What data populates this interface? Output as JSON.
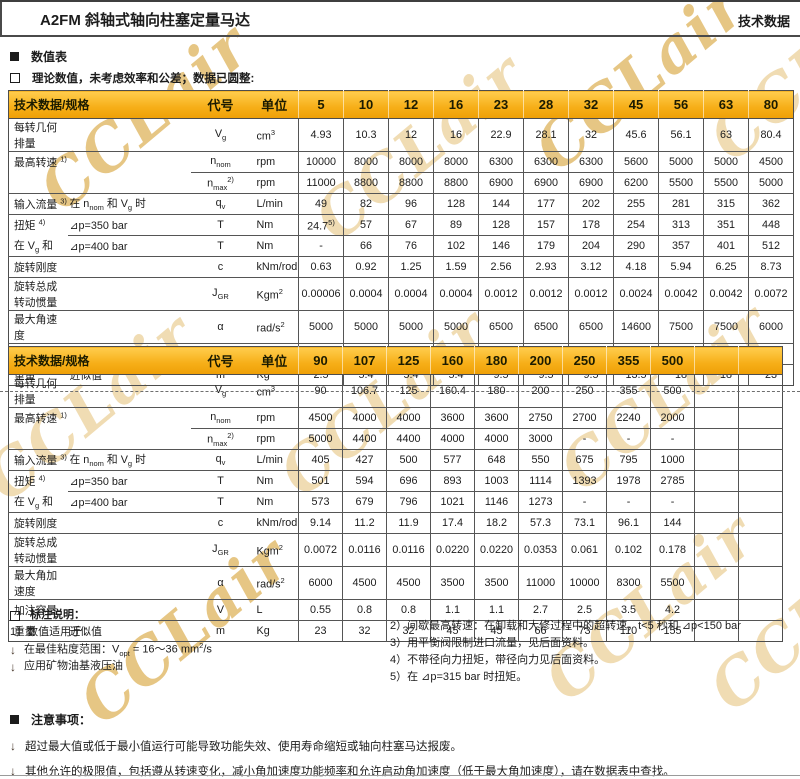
{
  "watermark": "CCLair",
  "header": {
    "left": "A2FM 斜轴式轴向柱塞定量马达",
    "right": "技术数据"
  },
  "sections": {
    "num_table": "数值表",
    "theory": "理论数值，未考虑效率和公差；数据已圆整:"
  },
  "icons": {
    "bullet_arrow": "↓",
    "filled_square": "filled-square",
    "open_square": "open-square"
  },
  "colors": {
    "band_top": "#FFCD4E",
    "band_bottom": "#EE9F06",
    "watermark": "#E2BA68",
    "grid": "#555555"
  },
  "tables": [
    {
      "header": {
        "spec": "技术数据/规格",
        "code": "代号",
        "unit": "单位",
        "sizes": [
          "5",
          "10",
          "12",
          "16",
          "23",
          "28",
          "32",
          "45",
          "56",
          "63",
          "80"
        ]
      },
      "rows": [
        {
          "label": [
            [
              "t",
              "每转几何排量"
            ]
          ],
          "sublabel": [],
          "code": [
            [
              "t",
              "V"
            ],
            [
              "sub",
              "g"
            ]
          ],
          "unit": [
            [
              "t",
              "cm"
            ],
            [
              "sup",
              "3"
            ]
          ],
          "divider": "full",
          "values": [
            "4.93",
            "10.3",
            "12",
            "16",
            "22.9",
            "28.1",
            "32",
            "45.6",
            "56.1",
            "63",
            "80.4"
          ]
        },
        {
          "label": [
            [
              "t",
              "最高转速 "
            ],
            [
              "sup",
              "1)"
            ]
          ],
          "sublabel": [],
          "code": [
            [
              "t",
              "n"
            ],
            [
              "sub",
              "nom"
            ]
          ],
          "unit": [
            [
              "t",
              "rpm"
            ]
          ],
          "divider": "full",
          "values": [
            "10000",
            "8000",
            "8000",
            "8000",
            "6300",
            "6300",
            "6300",
            "5600",
            "5000",
            "5000",
            "4500"
          ]
        },
        {
          "label": [],
          "sublabel": [],
          "code": [
            [
              "t",
              "n"
            ],
            [
              "sub",
              "max"
            ],
            [
              "sup",
              "2)"
            ]
          ],
          "unit": [
            [
              "t",
              "rpm"
            ]
          ],
          "divider": "code",
          "values": [
            "11000",
            "8800",
            "8800",
            "8800",
            "6900",
            "6900",
            "6900",
            "6200",
            "5500",
            "5500",
            "5000"
          ]
        },
        {
          "label": [
            [
              "t",
              "输入流量 "
            ],
            [
              "sup",
              "3)"
            ]
          ],
          "sublabel": [
            [
              "t",
              "在 n"
            ],
            [
              "sub",
              "nom"
            ],
            [
              "t",
              " 和 V"
            ],
            [
              "sub",
              "g"
            ],
            [
              "t",
              " 时"
            ]
          ],
          "code": [
            [
              "t",
              "q"
            ],
            [
              "sub",
              "v"
            ]
          ],
          "unit": [
            [
              "t",
              "L/min"
            ]
          ],
          "divider": "full",
          "values": [
            "49",
            "82",
            "96",
            "128",
            "144",
            "177",
            "202",
            "255",
            "281",
            "315",
            "362"
          ]
        },
        {
          "label": [
            [
              "t",
              "扭矩 "
            ],
            [
              "sup",
              "4)"
            ]
          ],
          "sublabel": [
            [
              "t",
              "⊿p=350 bar"
            ]
          ],
          "code": [
            [
              "t",
              "T"
            ]
          ],
          "unit": [
            [
              "t",
              "Nm"
            ]
          ],
          "divider": "full",
          "values": [
            [
              [
                "t",
                "24.7"
              ],
              [
                "sup",
                "5)"
              ]
            ],
            "57",
            "67",
            "89",
            "128",
            "157",
            "178",
            "254",
            "313",
            "351",
            "448"
          ]
        },
        {
          "label": [
            [
              "t",
              "在 V"
            ],
            [
              "sub",
              "g"
            ],
            [
              "t",
              " 和"
            ]
          ],
          "sublabel": [
            [
              "t",
              "⊿p=400 bar"
            ]
          ],
          "code": [
            [
              "t",
              "T"
            ]
          ],
          "unit": [
            [
              "t",
              "Nm"
            ]
          ],
          "divider": "sub",
          "values": [
            "-",
            "66",
            "76",
            "102",
            "146",
            "179",
            "204",
            "290",
            "357",
            "401",
            "512"
          ]
        },
        {
          "label": [
            [
              "t",
              "旋转刚度"
            ]
          ],
          "sublabel": [],
          "code": [
            [
              "t",
              "c"
            ]
          ],
          "unit": [
            [
              "t",
              "kNm/rod"
            ]
          ],
          "divider": "full",
          "values": [
            "0.63",
            "0.92",
            "1.25",
            "1.59",
            "2.56",
            "2.93",
            "3.12",
            "4.18",
            "5.94",
            "6.25",
            "8.73"
          ]
        },
        {
          "label": [
            [
              "t",
              "旋转总成转动惯量"
            ]
          ],
          "sublabel": [],
          "code": [
            [
              "t",
              "J"
            ],
            [
              "sub",
              "GR"
            ]
          ],
          "unit": [
            [
              "t",
              "Kgm"
            ],
            [
              "sup",
              "2"
            ]
          ],
          "divider": "full",
          "values": [
            "0.00006",
            "0.0004",
            "0.0004",
            "0.0004",
            "0.0012",
            "0.0012",
            "0.0012",
            "0.0024",
            "0.0042",
            "0.0042",
            "0.0072"
          ]
        },
        {
          "label": [
            [
              "t",
              "最大角速度"
            ]
          ],
          "sublabel": [],
          "code": [
            [
              "t",
              "α"
            ]
          ],
          "unit": [
            [
              "t",
              "rad/s"
            ],
            [
              "sup",
              "2"
            ]
          ],
          "divider": "full",
          "values": [
            "5000",
            "5000",
            "5000",
            "5000",
            "6500",
            "6500",
            "6500",
            "14600",
            "7500",
            "7500",
            "6000"
          ]
        },
        {
          "label": [
            [
              "t",
              "加注容量"
            ]
          ],
          "sublabel": [],
          "code": [
            [
              "t",
              "V"
            ]
          ],
          "unit": [
            [
              "t",
              "L"
            ]
          ],
          "divider": "full",
          "values": [
            "0.12",
            "0.17",
            "0.17",
            "0.17",
            "0.20",
            "0.20",
            "0.20",
            "0.33",
            "0.45",
            "0.45",
            "0.55"
          ]
        },
        {
          "label": [
            [
              "t",
              "重量"
            ]
          ],
          "sublabel": [
            [
              "t",
              "近似值"
            ]
          ],
          "code": [
            [
              "t",
              "m"
            ]
          ],
          "unit": [
            [
              "t",
              "Kg"
            ]
          ],
          "divider": "full",
          "values": [
            "2.5",
            "5.4",
            "5.4",
            "5.4",
            "9.5",
            "9.5",
            "9.5",
            "13.5",
            "18",
            "18",
            "23"
          ]
        }
      ]
    },
    {
      "header": {
        "spec": "技术数据/规格",
        "code": "代号",
        "unit": "单位",
        "sizes": [
          "90",
          "107",
          "125",
          "160",
          "180",
          "200",
          "250",
          "355",
          "500",
          "",
          ""
        ]
      },
      "rows": [
        {
          "label": [
            [
              "t",
              "每转几何排量"
            ]
          ],
          "sublabel": [],
          "code": [
            [
              "t",
              "V"
            ],
            [
              "sub",
              "g"
            ]
          ],
          "unit": [
            [
              "t",
              "cm"
            ],
            [
              "sup",
              "3"
            ]
          ],
          "divider": "full",
          "values": [
            "90",
            "106.7",
            "125",
            "160.4",
            "180",
            "200",
            "250",
            "355",
            "500",
            "",
            ""
          ]
        },
        {
          "label": [
            [
              "t",
              "最高转速 "
            ],
            [
              "sup",
              "1)"
            ]
          ],
          "sublabel": [],
          "code": [
            [
              "t",
              "n"
            ],
            [
              "sub",
              "nom"
            ]
          ],
          "unit": [
            [
              "t",
              "rpm"
            ]
          ],
          "divider": "full",
          "values": [
            "4500",
            "4000",
            "4000",
            "3600",
            "3600",
            "2750",
            "2700",
            "2240",
            "2000",
            "",
            ""
          ]
        },
        {
          "label": [],
          "sublabel": [],
          "code": [
            [
              "t",
              "n"
            ],
            [
              "sub",
              "max"
            ],
            [
              "sup",
              "2)"
            ]
          ],
          "unit": [
            [
              "t",
              "rpm"
            ]
          ],
          "divider": "code",
          "values": [
            "5000",
            "4400",
            "4400",
            "4000",
            "4000",
            "3000",
            "-",
            "-",
            "-",
            "",
            ""
          ]
        },
        {
          "label": [
            [
              "t",
              "输入流量 "
            ],
            [
              "sup",
              "3)"
            ]
          ],
          "sublabel": [
            [
              "t",
              "在 n"
            ],
            [
              "sub",
              "nom"
            ],
            [
              "t",
              " 和 V"
            ],
            [
              "sub",
              "g"
            ],
            [
              "t",
              " 时"
            ]
          ],
          "code": [
            [
              "t",
              "q"
            ],
            [
              "sub",
              "v"
            ]
          ],
          "unit": [
            [
              "t",
              "L/min"
            ]
          ],
          "divider": "full",
          "values": [
            "405",
            "427",
            "500",
            "577",
            "648",
            "550",
            "675",
            "795",
            "1000",
            "",
            ""
          ]
        },
        {
          "label": [
            [
              "t",
              "扭矩 "
            ],
            [
              "sup",
              "4)"
            ]
          ],
          "sublabel": [
            [
              "t",
              "⊿p=350 bar"
            ]
          ],
          "code": [
            [
              "t",
              "T"
            ]
          ],
          "unit": [
            [
              "t",
              "Nm"
            ]
          ],
          "divider": "full",
          "values": [
            "501",
            "594",
            "696",
            "893",
            "1003",
            "1114",
            "1393",
            "1978",
            "2785",
            "",
            ""
          ]
        },
        {
          "label": [
            [
              "t",
              "在 V"
            ],
            [
              "sub",
              "g"
            ],
            [
              "t",
              " 和"
            ]
          ],
          "sublabel": [
            [
              "t",
              "⊿p=400 bar"
            ]
          ],
          "code": [
            [
              "t",
              "T"
            ]
          ],
          "unit": [
            [
              "t",
              "Nm"
            ]
          ],
          "divider": "sub",
          "values": [
            "573",
            "679",
            "796",
            "1021",
            "1146",
            "1273",
            "-",
            "-",
            "-",
            "",
            ""
          ]
        },
        {
          "label": [
            [
              "t",
              "旋转刚度"
            ]
          ],
          "sublabel": [],
          "code": [
            [
              "t",
              "c"
            ]
          ],
          "unit": [
            [
              "t",
              "kNm/rod"
            ]
          ],
          "divider": "full",
          "values": [
            "9.14",
            "11.2",
            "11.9",
            "17.4",
            "18.2",
            "57.3",
            "73.1",
            "96.1",
            "144",
            "",
            ""
          ]
        },
        {
          "label": [
            [
              "t",
              "旋转总成转动惯量"
            ]
          ],
          "sublabel": [],
          "code": [
            [
              "t",
              "J"
            ],
            [
              "sub",
              "GR"
            ]
          ],
          "unit": [
            [
              "t",
              "Kgm"
            ],
            [
              "sup",
              "2"
            ]
          ],
          "divider": "full",
          "values": [
            "0.0072",
            "0.0116",
            "0.0116",
            "0.0220",
            "0.0220",
            "0.0353",
            "0.061",
            "0.102",
            "0.178",
            "",
            ""
          ]
        },
        {
          "label": [
            [
              "t",
              "最大角加速度"
            ]
          ],
          "sublabel": [],
          "code": [
            [
              "t",
              "α"
            ]
          ],
          "unit": [
            [
              "t",
              "rad/s"
            ],
            [
              "sup",
              "2"
            ]
          ],
          "divider": "full",
          "values": [
            "6000",
            "4500",
            "4500",
            "3500",
            "3500",
            "11000",
            "10000",
            "8300",
            "5500",
            "",
            ""
          ]
        },
        {
          "label": [
            [
              "t",
              "加注容量"
            ]
          ],
          "sublabel": [],
          "code": [
            [
              "t",
              "V"
            ]
          ],
          "unit": [
            [
              "t",
              "L"
            ]
          ],
          "divider": "full",
          "values": [
            "0.55",
            "0.8",
            "0.8",
            "1.1",
            "1.1",
            "2.7",
            "2.5",
            "3.5",
            "4.2",
            "",
            ""
          ]
        },
        {
          "label": [
            [
              "t",
              "重量"
            ]
          ],
          "sublabel": [
            [
              "t",
              "近似值"
            ]
          ],
          "code": [
            [
              "t",
              "m"
            ]
          ],
          "unit": [
            [
              "t",
              "Kg"
            ]
          ],
          "divider": "full",
          "values": [
            "23",
            "32",
            "32",
            "45",
            "45",
            "66",
            "73",
            "110",
            "155",
            "",
            ""
          ]
        }
      ]
    }
  ],
  "notes": {
    "title": "标注说明：",
    "left1": "1）数值适用于：",
    "b1_pre": "在最佳粘度范围：V",
    "b1_sub": "opt",
    "b1_mid": " = 16～36 mm",
    "b1_sup": "2",
    "b1_end": "/s",
    "b2": "应用矿物油基液压油",
    "right": [
      "2）间歇最高转速：在卸载和大修过程中的超转速，t<5 秒和 ⊿p<150 bar",
      "3）用平衡阀限制进口流量，见后面资料。",
      "4）不带径向力扭矩，带径向力见后面资料。",
      "5）在 ⊿p=315 bar 时扭矩。"
    ]
  },
  "cautions": {
    "title": "注意事项：",
    "items": [
      "超过最大值或低于最小值运行可能导致功能失效、使用寿命缩短或轴向柱塞马达报废。",
      "其他允许的极限值，包括遵从转速变化，减小角加速度功能频率和允许启动角加速度（低于最大角加速度），请在数据表中查找。"
    ]
  }
}
